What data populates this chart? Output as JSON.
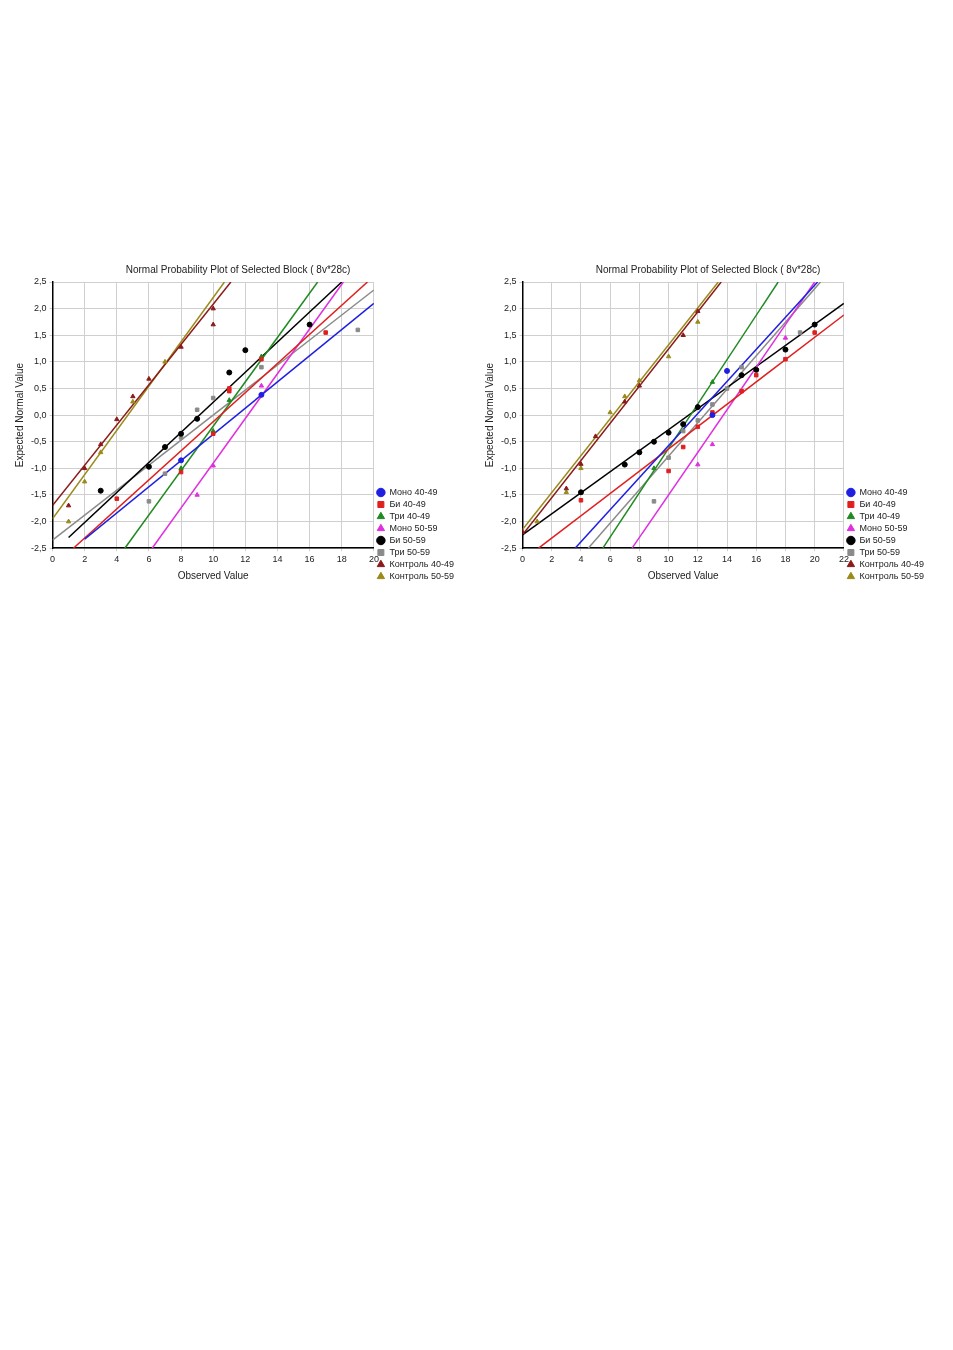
{
  "chart_data": [
    {
      "type": "scatter",
      "title": "Normal Probability Plot of Selected Block ( 8v*28c)",
      "xlabel": "Observed Value",
      "ylabel": "Expected Normal Value",
      "xlim": [
        0,
        20
      ],
      "xticks": [
        0,
        2,
        4,
        6,
        8,
        10,
        12,
        14,
        16,
        18,
        20
      ],
      "ylim": [
        -2.5,
        2.5
      ],
      "yticks": [
        {
          "value": -2.5,
          "label": "-2,5"
        },
        {
          "value": -2,
          "label": "-2,0"
        },
        {
          "value": -1.5,
          "label": "-1,5"
        },
        {
          "value": -1,
          "label": "-1,0"
        },
        {
          "value": -0.5,
          "label": "-0,5"
        },
        {
          "value": 0,
          "label": "0,0"
        },
        {
          "value": 0.5,
          "label": "0,5"
        },
        {
          "value": 1,
          "label": "1,0"
        },
        {
          "value": 1.5,
          "label": "1,5"
        },
        {
          "value": 2,
          "label": "2,0"
        },
        {
          "value": 2.5,
          "label": "2,5"
        }
      ],
      "grid": true,
      "legend": "bottom right",
      "series": [
        {
          "name": "Моно 40-49",
          "color": "#1f1fe0",
          "marker": "circle",
          "x": [
            8,
            13
          ],
          "values": [
            -0.85,
            0.38
          ]
        },
        {
          "name": "Би 40-49",
          "color": "#e01f1f",
          "marker": "square",
          "x": [
            4,
            8,
            10,
            11,
            11,
            13,
            17
          ],
          "values": [
            -1.57,
            -1.07,
            -0.35,
            0.45,
            0.5,
            1.05,
            1.55
          ]
        },
        {
          "name": "Три 40-49",
          "color": "#1f8a1f",
          "marker": "triangle",
          "x": [
            8,
            10,
            11,
            13
          ],
          "values": [
            -1.0,
            -0.3,
            0.28,
            1.1
          ]
        },
        {
          "name": "Моно 50-59",
          "color": "#e02ee0",
          "marker": "triangle",
          "x": [
            9,
            10,
            13
          ],
          "values": [
            -1.5,
            -0.95,
            0.55
          ]
        },
        {
          "name": "Би 50-59",
          "color": "#000000",
          "marker": "circle",
          "x": [
            3,
            6,
            7,
            8,
            9,
            11,
            12,
            16
          ],
          "values": [
            -1.42,
            -0.97,
            -0.6,
            -0.35,
            -0.07,
            0.8,
            1.22,
            1.7
          ]
        },
        {
          "name": "Три 50-59",
          "color": "#8a8a8a",
          "marker": "square",
          "x": [
            6,
            7,
            8,
            9,
            10,
            11,
            13,
            19
          ],
          "values": [
            -1.62,
            -1.1,
            -0.42,
            0.1,
            0.32,
            null,
            0.9,
            1.6
          ]
        },
        {
          "name": "Контроль 40-49",
          "color": "#8b1a1a",
          "marker": "triangle",
          "x": [
            1,
            2,
            3,
            4,
            5,
            6,
            8,
            10,
            10
          ],
          "values": [
            -1.7,
            -1.0,
            -0.55,
            -0.08,
            0.35,
            0.68,
            1.28,
            1.7,
            2.0
          ]
        },
        {
          "name": "Контроль 50-59",
          "color": "#9a8a1a",
          "marker": "triangle",
          "x": [
            1,
            2,
            3,
            4,
            5,
            6,
            7
          ],
          "values": [
            -2.0,
            -1.25,
            -0.7,
            null,
            0.25,
            null,
            1.0
          ]
        },
        {
          "type": "line",
          "color": "#1f1fe0",
          "x": [
            2,
            20
          ],
          "values": [
            -2.33,
            2.1
          ]
        },
        {
          "type": "line",
          "color": "#e01f1f",
          "x": [
            1.3,
            19.6
          ],
          "values": [
            -2.5,
            2.5
          ]
        },
        {
          "type": "line",
          "color": "#1f8a1f",
          "x": [
            4.5,
            16.5
          ],
          "values": [
            -2.5,
            2.5
          ]
        },
        {
          "type": "line",
          "color": "#e02ee0",
          "x": [
            6.2,
            18.1
          ],
          "values": [
            -2.5,
            2.5
          ]
        },
        {
          "type": "line",
          "color": "#000000",
          "x": [
            1,
            18
          ],
          "values": [
            -2.3,
            2.5
          ]
        },
        {
          "type": "line",
          "color": "#8a8a8a",
          "x": [
            0,
            20
          ],
          "values": [
            -2.35,
            2.35
          ]
        },
        {
          "type": "line",
          "color": "#8b1a1a",
          "x": [
            0,
            11.1
          ],
          "values": [
            -1.7,
            2.5
          ]
        },
        {
          "type": "line",
          "color": "#9a8a1a",
          "x": [
            0,
            10.7
          ],
          "values": [
            -1.95,
            2.5
          ]
        }
      ]
    },
    {
      "type": "scatter",
      "title": "Normal Probability Plot of Selected Block ( 8v*28c)",
      "xlabel": "Observed Value",
      "ylabel": "Expected Normal Value",
      "xlim": [
        0,
        22
      ],
      "xticks": [
        0,
        2,
        4,
        6,
        8,
        10,
        12,
        14,
        16,
        18,
        20,
        22
      ],
      "ylim": [
        -2.5,
        2.5
      ],
      "yticks": [
        {
          "value": -2.5,
          "label": "-2,5"
        },
        {
          "value": -2,
          "label": "-2,0"
        },
        {
          "value": -1.5,
          "label": "-1,5"
        },
        {
          "value": -1,
          "label": "-1,0"
        },
        {
          "value": -0.5,
          "label": "-0,5"
        },
        {
          "value": 0,
          "label": "0,0"
        },
        {
          "value": 0.5,
          "label": "0,5"
        },
        {
          "value": 1,
          "label": "1,0"
        },
        {
          "value": 1.5,
          "label": "1,5"
        },
        {
          "value": 2,
          "label": "2,0"
        },
        {
          "value": 2.5,
          "label": "2,5"
        }
      ],
      "grid": true,
      "legend": "bottom right",
      "series": [
        {
          "name": "Моно 40-49",
          "color": "#1f1fe0",
          "marker": "circle",
          "x": [
            13,
            14
          ],
          "values": [
            0.0,
            0.83
          ]
        },
        {
          "name": "Би 40-49",
          "color": "#e01f1f",
          "marker": "square",
          "x": [
            4,
            10,
            11,
            12,
            13,
            15,
            16,
            18,
            20
          ],
          "values": [
            -1.6,
            -1.05,
            -0.6,
            -0.22,
            0.05,
            0.45,
            0.75,
            1.05,
            1.55
          ]
        },
        {
          "name": "Три 40-49",
          "color": "#1f8a1f",
          "marker": "triangle",
          "x": [
            9,
            13
          ],
          "values": [
            -1.0,
            0.62
          ]
        },
        {
          "name": "Моно 50-59",
          "color": "#e02ee0",
          "marker": "triangle",
          "x": [
            12,
            13,
            18
          ],
          "values": [
            -0.93,
            -0.55,
            1.45
          ]
        },
        {
          "name": "Би 50-59",
          "color": "#000000",
          "marker": "circle",
          "x": [
            4,
            7,
            8,
            9,
            10,
            11,
            12,
            15,
            16,
            18,
            20
          ],
          "values": [
            -1.45,
            -0.93,
            -0.7,
            -0.5,
            -0.33,
            -0.17,
            0.15,
            0.75,
            0.85,
            1.23,
            1.7
          ]
        },
        {
          "name": "Три 50-59",
          "color": "#8a8a8a",
          "marker": "square",
          "x": [
            9,
            10,
            11,
            12,
            13,
            14,
            15,
            19
          ],
          "values": [
            -1.62,
            -0.8,
            -0.3,
            -0.1,
            0.2,
            0.5,
            0.9,
            1.55
          ]
        },
        {
          "name": "Контроль 40-49",
          "color": "#8b1a1a",
          "marker": "triangle",
          "x": [
            0,
            3,
            4,
            5,
            7,
            8,
            11,
            12
          ],
          "values": [
            -2.2,
            -1.38,
            -0.92,
            -0.4,
            0.25,
            0.55,
            1.5,
            1.95
          ]
        },
        {
          "name": "Контроль 50-59",
          "color": "#9a8a1a",
          "marker": "triangle",
          "x": [
            1,
            3,
            4,
            6,
            7,
            8,
            10,
            12
          ],
          "values": [
            -2.0,
            -1.45,
            -1.0,
            0.05,
            0.35,
            0.65,
            1.1,
            1.75
          ]
        },
        {
          "type": "line",
          "color": "#1f1fe0",
          "x": [
            3.6,
            20.2
          ],
          "values": [
            -2.5,
            2.5
          ]
        },
        {
          "type": "line",
          "color": "#e01f1f",
          "x": [
            1.1,
            22
          ],
          "values": [
            -2.5,
            1.88
          ]
        },
        {
          "type": "line",
          "color": "#1f8a1f",
          "x": [
            5.5,
            17.5
          ],
          "values": [
            -2.5,
            2.5
          ]
        },
        {
          "type": "line",
          "color": "#e02ee0",
          "x": [
            7.5,
            20
          ],
          "values": [
            -2.5,
            2.5
          ]
        },
        {
          "type": "line",
          "color": "#000000",
          "x": [
            0,
            22
          ],
          "values": [
            -2.25,
            2.1
          ]
        },
        {
          "type": "line",
          "color": "#8a8a8a",
          "x": [
            4.5,
            20.4
          ],
          "values": [
            -2.5,
            2.5
          ]
        },
        {
          "type": "line",
          "color": "#8b1a1a",
          "x": [
            0,
            13.6
          ],
          "values": [
            -2.25,
            2.5
          ]
        },
        {
          "type": "line",
          "color": "#9a8a1a",
          "x": [
            0,
            13.4
          ],
          "values": [
            -2.15,
            2.5
          ]
        }
      ]
    }
  ]
}
